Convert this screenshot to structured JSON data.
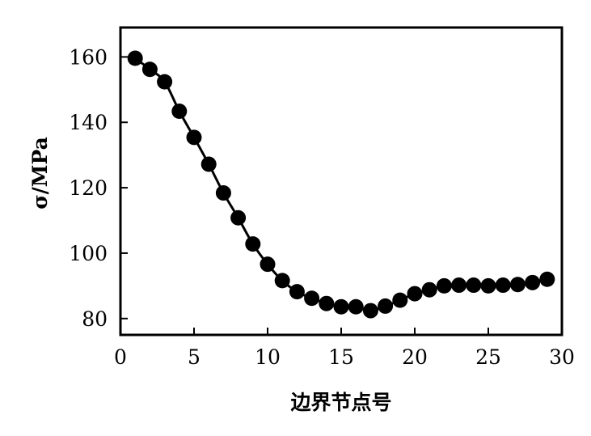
{
  "chart_data": {
    "type": "line",
    "title": "",
    "xlabel": "边界节点号",
    "ylabel": "σ/MPa",
    "xlim": [
      0,
      30
    ],
    "ylim": [
      75,
      169
    ],
    "x_ticks": [
      0,
      5,
      10,
      15,
      20,
      25,
      30
    ],
    "y_ticks": [
      80,
      100,
      120,
      140,
      160
    ],
    "x_tick_labels": [
      "0",
      "5",
      "10",
      "15",
      "20",
      "25",
      "30"
    ],
    "y_tick_labels": [
      "80",
      "100",
      "120",
      "140",
      "160"
    ],
    "grid": false,
    "legend": "none",
    "line_color": "#000000",
    "marker_color": "#000000",
    "series": [
      {
        "x": [
          1,
          2,
          3,
          4,
          5,
          6,
          7,
          8,
          9,
          10,
          11,
          12,
          13,
          14,
          15,
          16,
          17,
          18,
          19,
          20,
          21,
          22,
          23,
          24,
          25,
          26,
          27,
          28,
          29
        ],
        "y": [
          159.6,
          156.2,
          152.4,
          143.4,
          135.4,
          127.2,
          118.4,
          110.8,
          102.8,
          96.6,
          91.6,
          88.2,
          86.2,
          84.6,
          83.6,
          83.6,
          82.4,
          83.8,
          85.6,
          87.6,
          88.8,
          90,
          90.2,
          90.2,
          90,
          90.2,
          90.4,
          91,
          92
        ]
      }
    ]
  }
}
